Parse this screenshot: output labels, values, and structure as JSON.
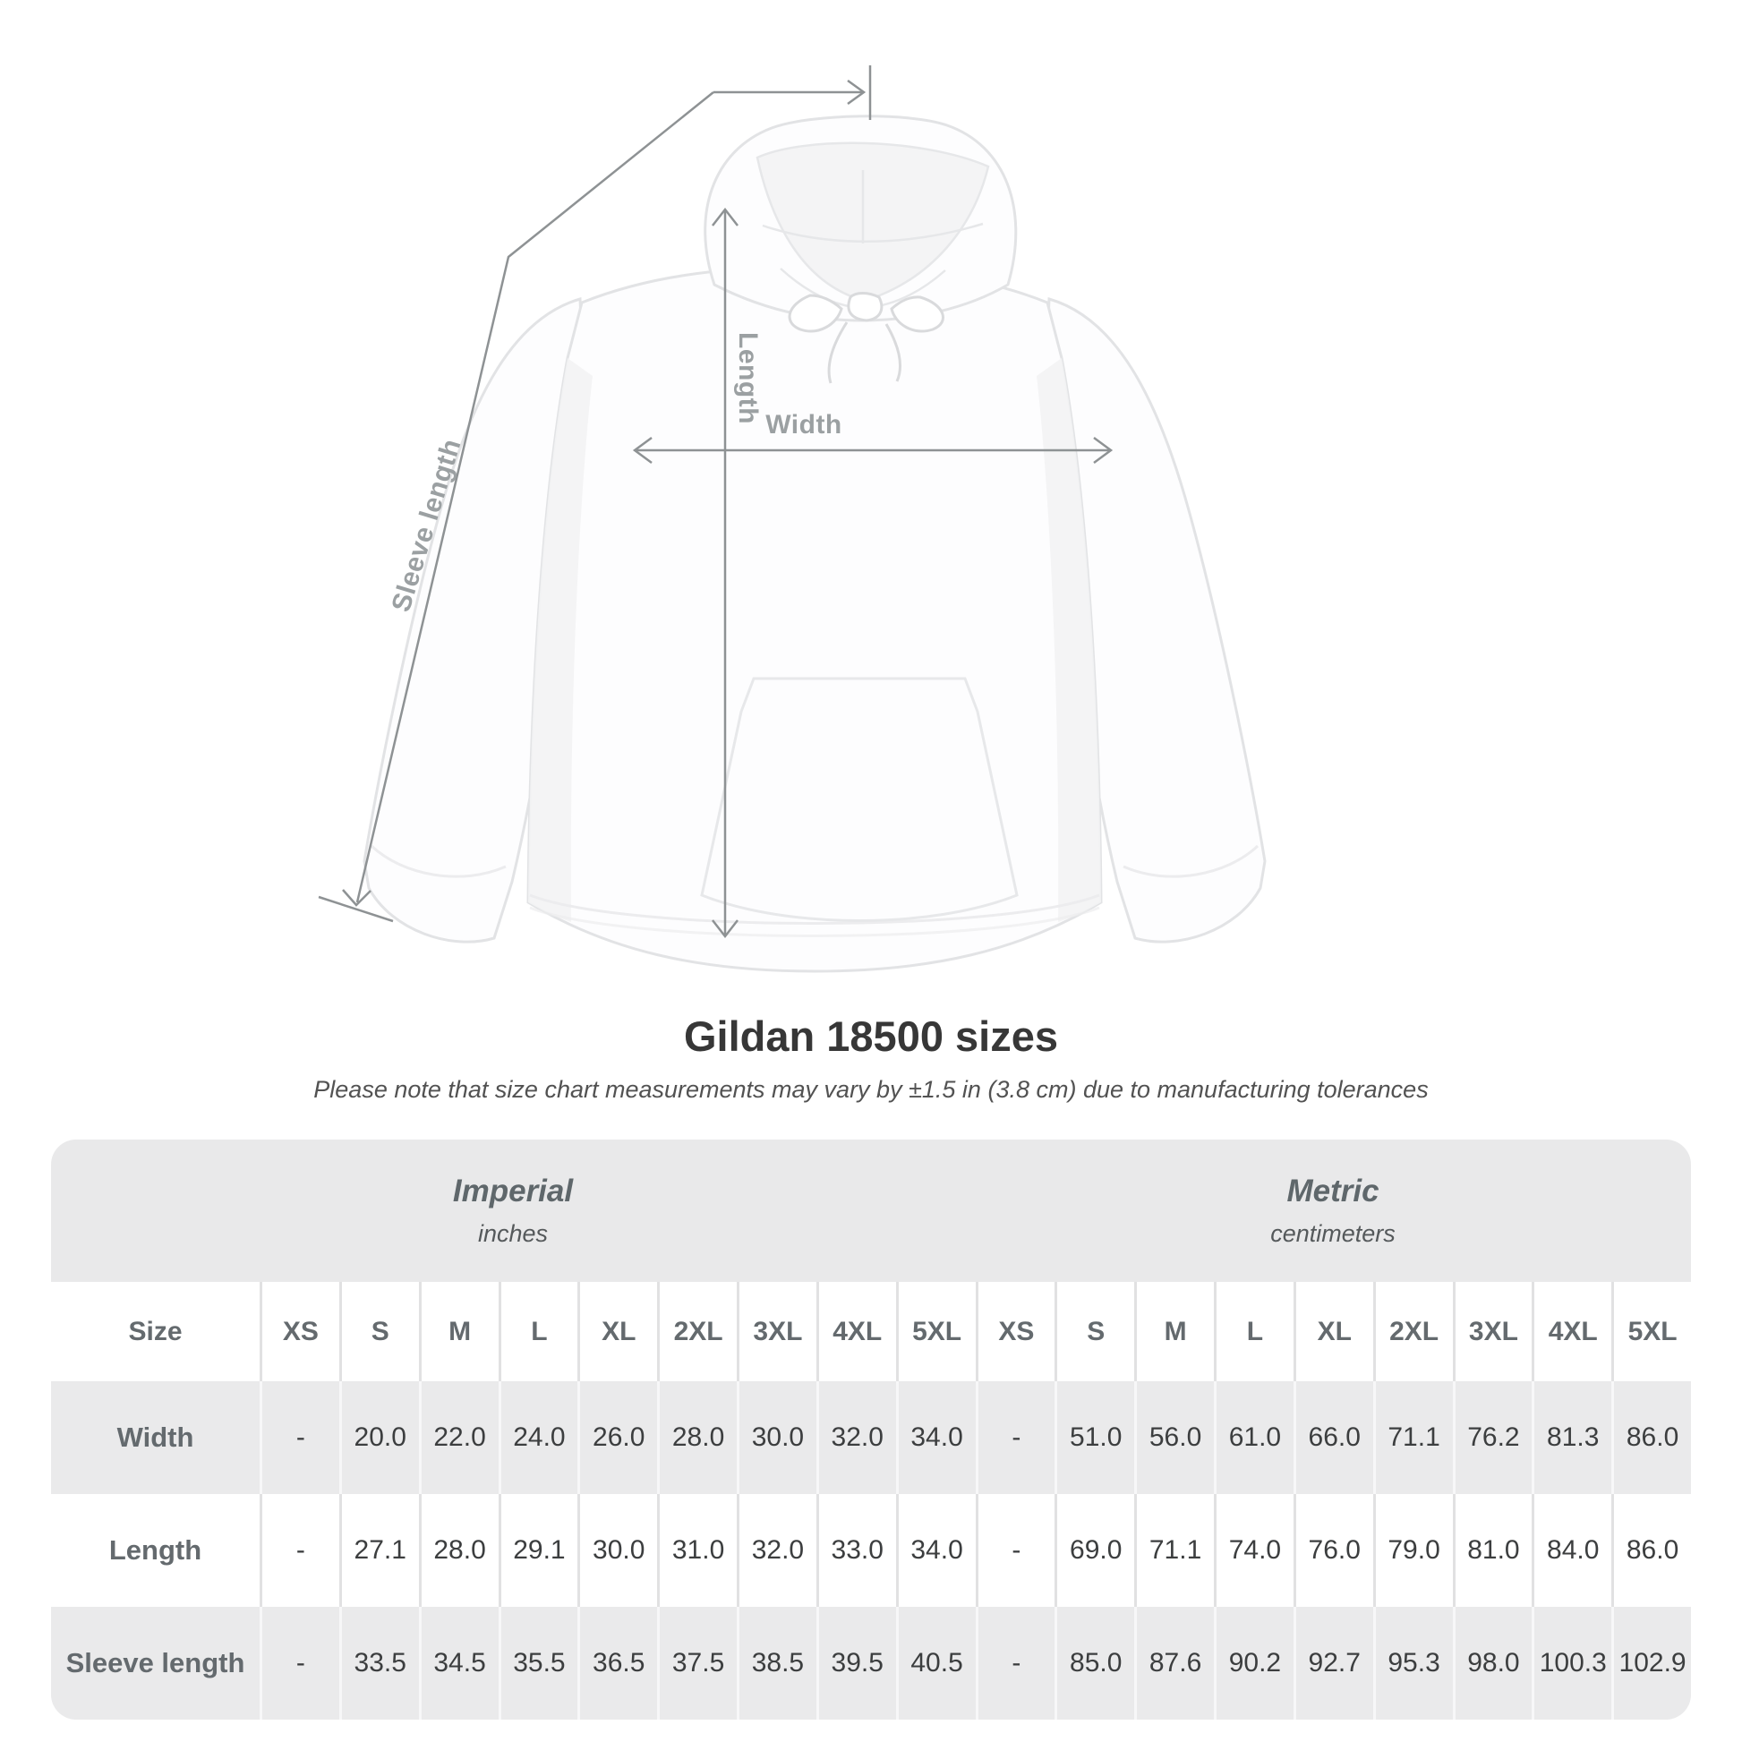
{
  "page": {
    "title": "Gildan 18500 sizes",
    "note": "Please note that size chart measurements may vary by ±1.5 in (3.8 cm) due to manufacturing tolerances"
  },
  "diagram": {
    "product": "white pullover hoodie front view",
    "annotation_color": "#8e9294",
    "label_color": "#9ba0a2",
    "labels": {
      "length": "Length",
      "width": "Width",
      "sleeve": "Sleeve length"
    }
  },
  "size_chart": {
    "header_label": "Size",
    "unit_groups": [
      {
        "name": "Imperial",
        "unit": "inches"
      },
      {
        "name": "Metric",
        "unit": "centimeters"
      }
    ],
    "sizes": [
      "XS",
      "S",
      "M",
      "L",
      "XL",
      "2XL",
      "3XL",
      "4XL",
      "5XL"
    ],
    "rows": [
      {
        "label": "Width",
        "imperial": [
          "-",
          "20.0",
          "22.0",
          "24.0",
          "26.0",
          "28.0",
          "30.0",
          "32.0",
          "34.0"
        ],
        "metric": [
          "-",
          "51.0",
          "56.0",
          "61.0",
          "66.0",
          "71.1",
          "76.2",
          "81.3",
          "86.0"
        ]
      },
      {
        "label": "Length",
        "imperial": [
          "-",
          "27.1",
          "28.0",
          "29.1",
          "30.0",
          "31.0",
          "32.0",
          "33.0",
          "34.0"
        ],
        "metric": [
          "-",
          "69.0",
          "71.1",
          "74.0",
          "76.0",
          "79.0",
          "81.0",
          "84.0",
          "86.0"
        ]
      },
      {
        "label": "Sleeve length",
        "imperial": [
          "-",
          "33.5",
          "34.5",
          "35.5",
          "36.5",
          "37.5",
          "38.5",
          "39.5",
          "40.5"
        ],
        "metric": [
          "-",
          "85.0",
          "87.6",
          "90.2",
          "92.7",
          "95.3",
          "98.0",
          "100.3",
          "102.9"
        ]
      }
    ]
  }
}
